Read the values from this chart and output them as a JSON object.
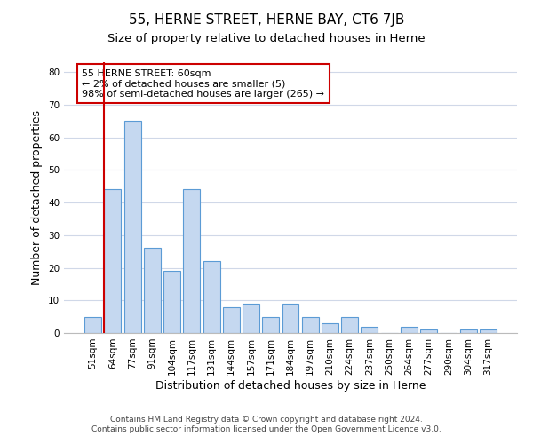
{
  "title": "55, HERNE STREET, HERNE BAY, CT6 7JB",
  "subtitle": "Size of property relative to detached houses in Herne",
  "xlabel": "Distribution of detached houses by size in Herne",
  "ylabel": "Number of detached properties",
  "bar_labels": [
    "51sqm",
    "64sqm",
    "77sqm",
    "91sqm",
    "104sqm",
    "117sqm",
    "131sqm",
    "144sqm",
    "157sqm",
    "171sqm",
    "184sqm",
    "197sqm",
    "210sqm",
    "224sqm",
    "237sqm",
    "250sqm",
    "264sqm",
    "277sqm",
    "290sqm",
    "304sqm",
    "317sqm"
  ],
  "bar_heights": [
    5,
    44,
    65,
    26,
    19,
    44,
    22,
    8,
    9,
    5,
    9,
    5,
    3,
    5,
    2,
    0,
    2,
    1,
    0,
    1,
    1
  ],
  "bar_color": "#c5d8f0",
  "bar_edge_color": "#5b9bd5",
  "highlight_line_color": "#cc0000",
  "annotation_title": "55 HERNE STREET: 60sqm",
  "annotation_line1": "← 2% of detached houses are smaller (5)",
  "annotation_line2": "98% of semi-detached houses are larger (265) →",
  "annotation_box_color": "#cc0000",
  "ylim": [
    0,
    83
  ],
  "yticks": [
    0,
    10,
    20,
    30,
    40,
    50,
    60,
    70,
    80
  ],
  "footer_line1": "Contains HM Land Registry data © Crown copyright and database right 2024.",
  "footer_line2": "Contains public sector information licensed under the Open Government Licence v3.0.",
  "bg_color": "#ffffff",
  "grid_color": "#d0d8e8",
  "title_fontsize": 11,
  "subtitle_fontsize": 9.5,
  "axis_label_fontsize": 9,
  "tick_fontsize": 7.5,
  "annotation_fontsize": 8,
  "footer_fontsize": 6.5
}
